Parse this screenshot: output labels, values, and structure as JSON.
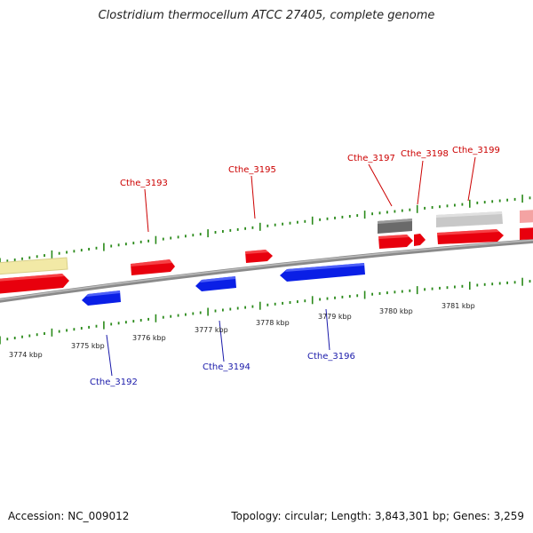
{
  "title": "Clostridium thermocellum ATCC 27405, complete genome",
  "footer": {
    "accession": "Accession: NC_009012",
    "summary": "Topology: circular; Length: 3,843,301 bp; Genes: 3,259"
  },
  "colors": {
    "forward_cds": "#e8000d",
    "reverse_cds": "#0a1fe6",
    "gene_gray": "#c8c8c8",
    "gene_dark": "#6a6a6a",
    "gene_yellow": "#f2e9a6",
    "gene_pink": "#f4a3a3",
    "tick": "#2a8a1a",
    "backbone": "#8a8a8a",
    "label_forward": "#cc0000",
    "label_reverse": "#1a1aaa"
  },
  "kbp_labels": [
    "3774 kbp",
    "3775 kbp",
    "3776 kbp",
    "3777 kbp",
    "3778 kbp",
    "3779 kbp",
    "3780 kbp",
    "3781 kbp"
  ],
  "gene_labels": {
    "forward": [
      "Cthe_3193",
      "Cthe_3195",
      "Cthe_3197",
      "Cthe_3198",
      "Cthe_3199"
    ],
    "reverse": [
      "Cthe_3192",
      "Cthe_3194",
      "Cthe_3196"
    ]
  }
}
